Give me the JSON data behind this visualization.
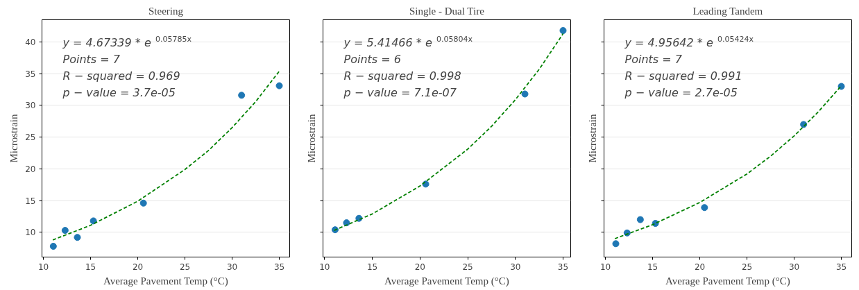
{
  "chart_data": [
    {
      "type": "scatter",
      "title": "Steering",
      "xlabel": "Average Pavement Temp (°C)",
      "ylabel": "Microstrain",
      "xlim": [
        9.85,
        36.1
      ],
      "ylim": [
        6.1,
        43.5
      ],
      "xticks": [
        10,
        15,
        20,
        25,
        30,
        35
      ],
      "yticks": [
        10,
        15,
        20,
        25,
        30,
        35,
        40
      ],
      "grid": "y",
      "annotations": [
        "y = 4.67339 * e$^{0.05785x}$",
        "Points = 7",
        "R − squared = 0.969",
        "p − value = 3.7e-05"
      ],
      "series": [
        {
          "marker": "circle",
          "color": "#1f77b4",
          "x": [
            11.05,
            12.3,
            13.6,
            15.3,
            20.6,
            31.0,
            35.0
          ],
          "values": [
            7.8,
            10.3,
            9.2,
            11.8,
            14.6,
            31.6,
            33.1
          ]
        },
        {
          "type": "line",
          "line_style": "dashed",
          "marker": "none",
          "color": "#008000",
          "x": [
            11,
            15,
            20,
            25,
            27.5,
            30,
            32.5,
            35
          ],
          "values": [
            8.8,
            11.1,
            14.9,
            19.9,
            22.9,
            26.5,
            30.6,
            35.4
          ]
        }
      ]
    },
    {
      "type": "scatter",
      "title": "Single - Dual Tire",
      "xlabel": "Average Pavement Temp (°C)",
      "ylabel": "Microstrain",
      "xlim": [
        9.83,
        35.8
      ],
      "ylim": [
        6.1,
        43.5
      ],
      "xticks": [
        10,
        15,
        20,
        25,
        30,
        35
      ],
      "yticks": [
        10,
        15,
        20,
        25,
        30,
        35,
        40
      ],
      "grid": "y",
      "tick_labels": "x",
      "annotations": [
        "y = 5.41466 * e$^{0.05804x}$",
        "Points = 6",
        "R − squared = 0.998",
        "p − value = 7.1e-07"
      ],
      "series": [
        {
          "marker": "circle",
          "color": "#1f77b4",
          "x": [
            11.1,
            12.3,
            13.6,
            20.6,
            31.0,
            35.0
          ],
          "values": [
            10.4,
            11.5,
            12.2,
            17.6,
            31.8,
            41.8
          ]
        },
        {
          "type": "line",
          "line_style": "dashed",
          "marker": "none",
          "color": "#008000",
          "x": [
            11,
            15,
            20,
            25,
            27.5,
            30,
            32.5,
            35
          ],
          "values": [
            10.3,
            12.9,
            17.3,
            23.1,
            26.7,
            30.9,
            35.7,
            41.3
          ]
        }
      ]
    },
    {
      "type": "scatter",
      "title": "Leading Tandem",
      "xlabel": "Average Pavement Temp (°C)",
      "ylabel": "Microstrain",
      "xlim": [
        9.85,
        36.1
      ],
      "ylim": [
        6.1,
        43.5
      ],
      "xticks": [
        10,
        15,
        20,
        25,
        30,
        35
      ],
      "yticks": [
        10,
        15,
        20,
        25,
        30,
        35,
        40
      ],
      "grid": "y",
      "tick_labels": "x",
      "annotations": [
        "y = 4.95642 * e$^{0.05424x}$",
        "Points = 7",
        "R − squared = 0.991",
        "p − value = 2.7e-05"
      ],
      "series": [
        {
          "marker": "circle",
          "color": "#1f77b4",
          "x": [
            11.1,
            12.3,
            13.7,
            15.3,
            20.5,
            31.0,
            35.0
          ],
          "values": [
            8.2,
            9.9,
            12.0,
            11.4,
            13.9,
            27.0,
            33.0
          ]
        },
        {
          "type": "line",
          "line_style": "dashed",
          "marker": "none",
          "color": "#008000",
          "x": [
            11,
            15,
            20,
            25,
            27.5,
            30,
            32.5,
            35
          ],
          "values": [
            9.0,
            11.2,
            14.7,
            19.2,
            22.0,
            25.2,
            28.9,
            33.1
          ]
        }
      ]
    }
  ]
}
